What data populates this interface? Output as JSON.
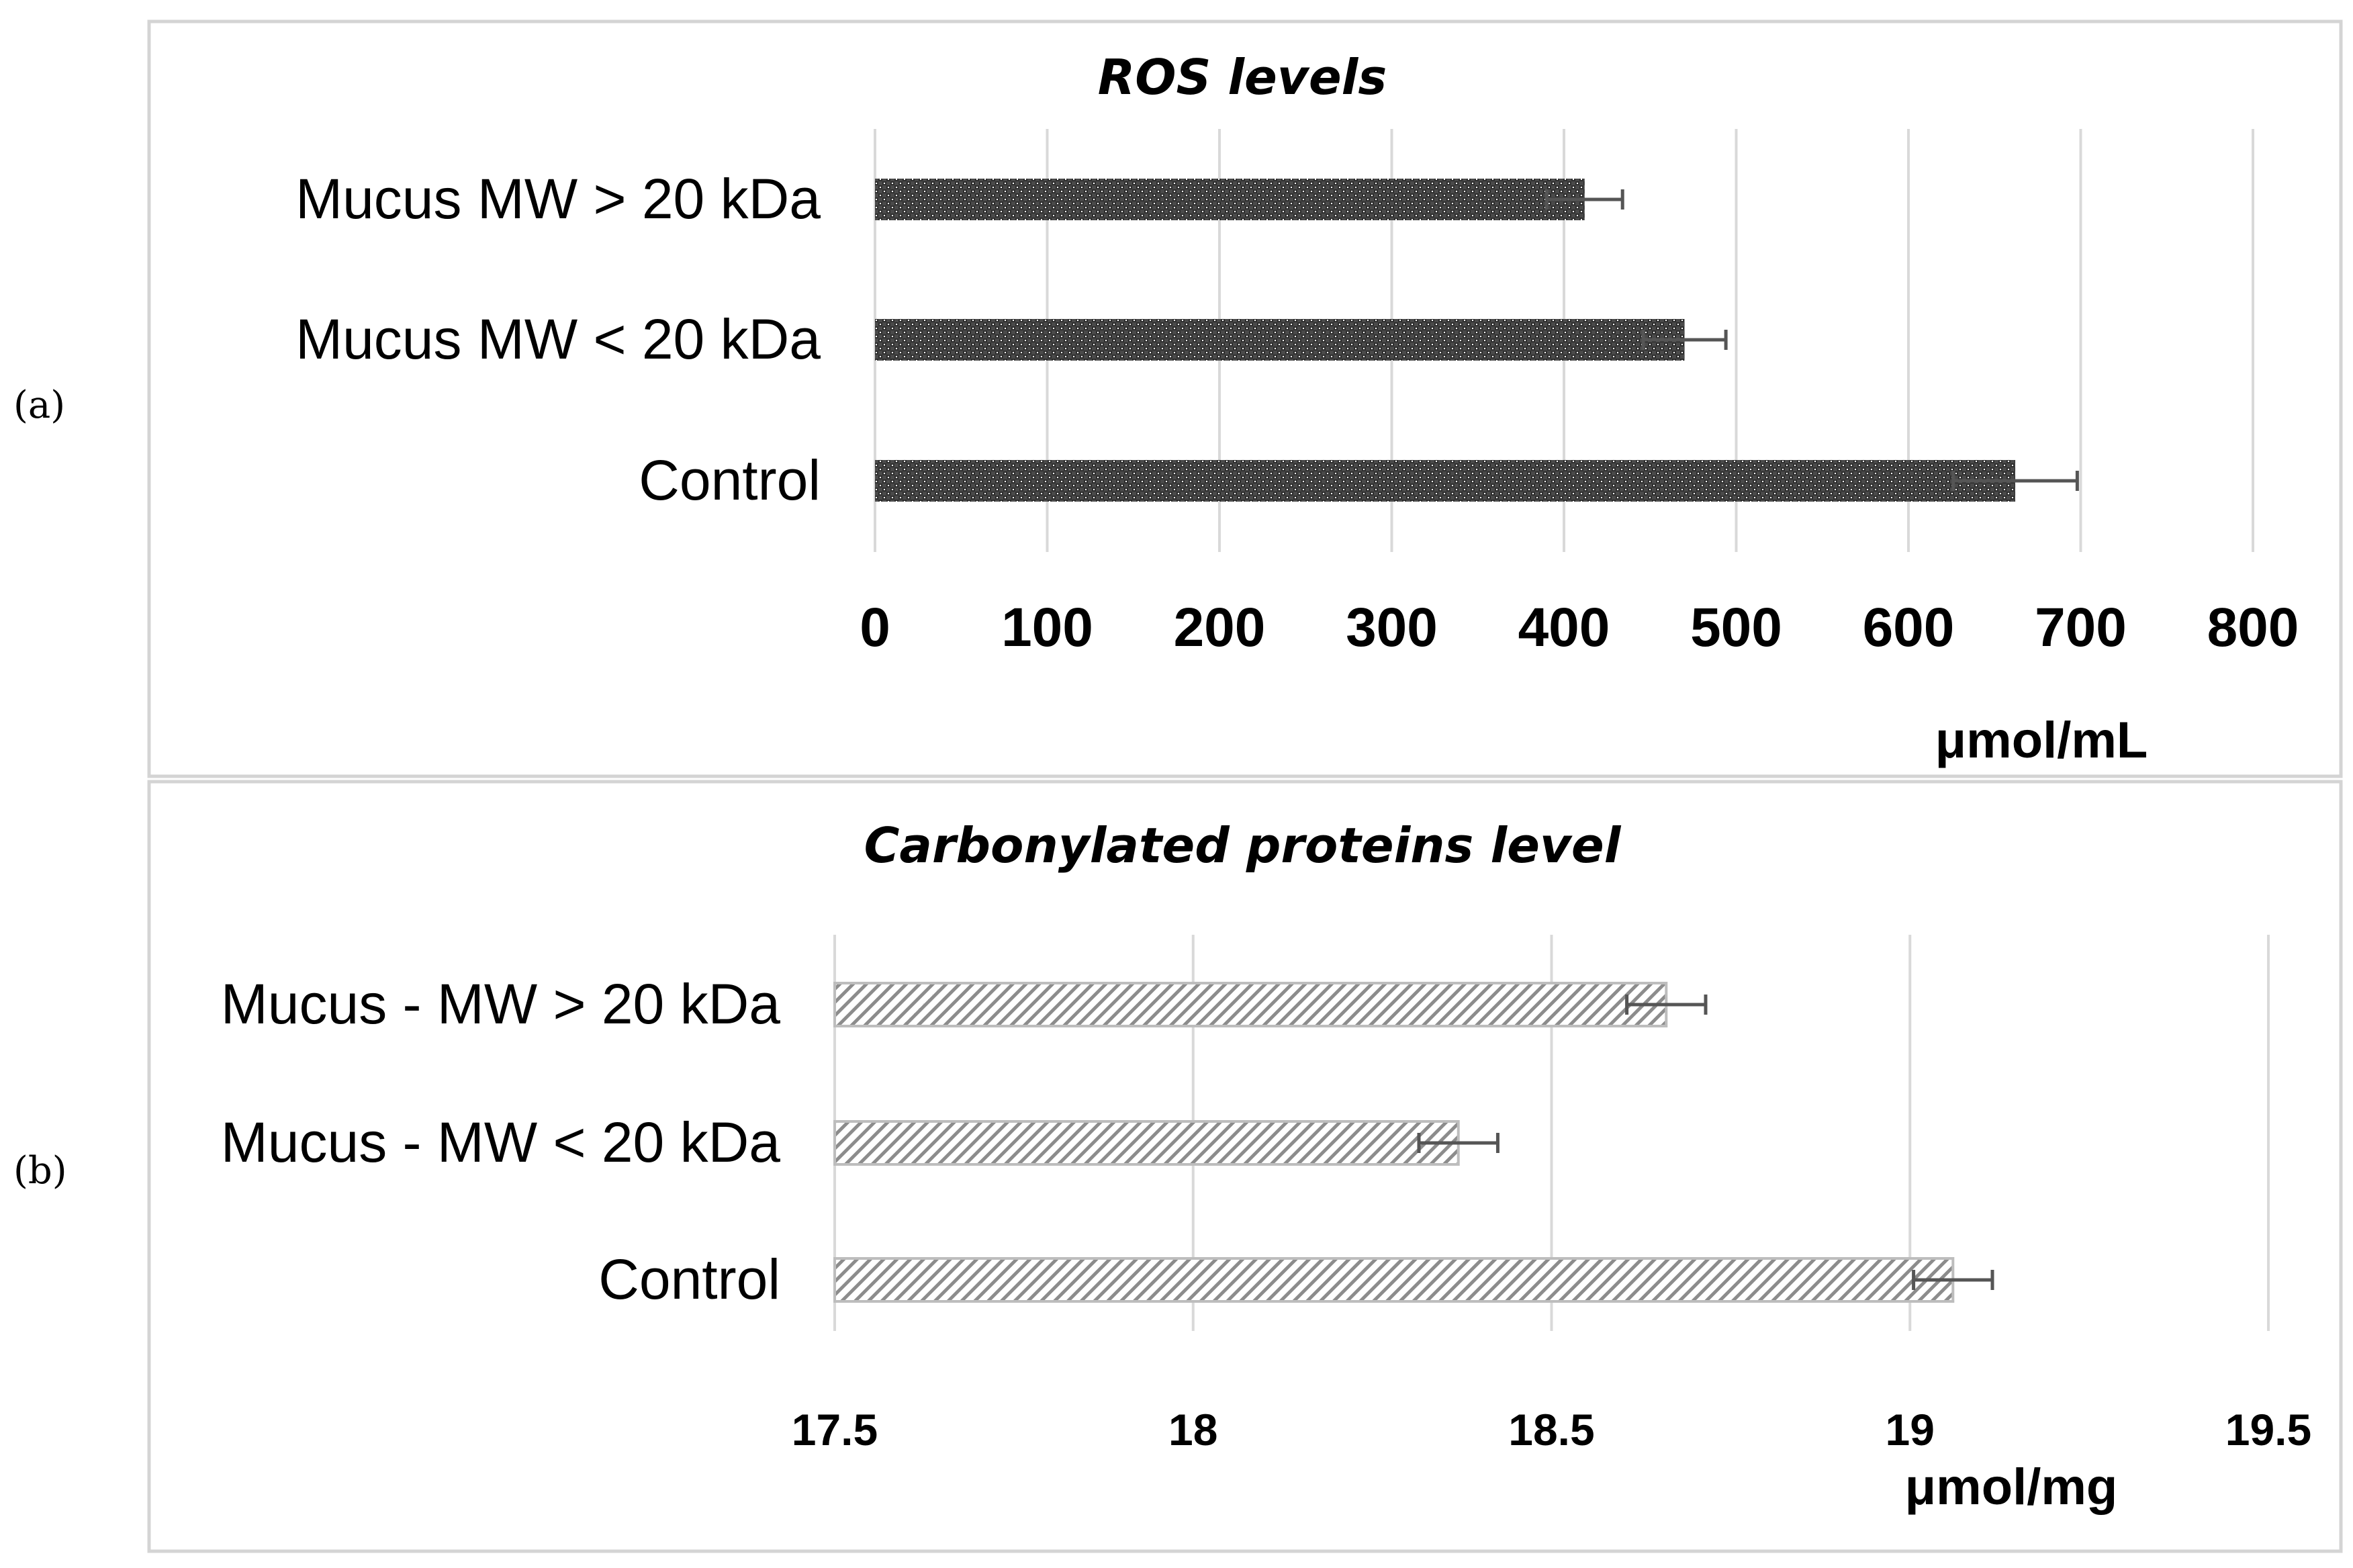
{
  "chart_data": [
    {
      "type": "bar",
      "orientation": "horizontal",
      "panel_label": "(a)",
      "title": "ROS levels",
      "xlabel": "μmol/mL",
      "ylabel": "",
      "categories": [
        "Mucus MW > 20 kDa",
        "Mucus MW < 20 kDa",
        "Control"
      ],
      "values": [
        412,
        470,
        662
      ],
      "errors": [
        22,
        24,
        36
      ],
      "xlim": [
        0,
        800
      ],
      "ticks": [
        "0",
        "100",
        "200",
        "300",
        "400",
        "500",
        "600",
        "700",
        "800"
      ],
      "tick_values": [
        0,
        100,
        200,
        300,
        400,
        500,
        600,
        700,
        800
      ],
      "grid": true,
      "bar_fill": "#3a3a3a",
      "bar_pattern": "dots"
    },
    {
      "type": "bar",
      "orientation": "horizontal",
      "panel_label": "(b)",
      "title": "Carbonylated proteins level",
      "xlabel": "μmol/mg",
      "ylabel": "",
      "categories": [
        "Mucus - MW > 20 kDa",
        "Mucus - MW < 20 kDa",
        "Control"
      ],
      "values": [
        18.66,
        18.37,
        19.06
      ],
      "errors": [
        0.055,
        0.055,
        0.055
      ],
      "xlim": [
        17.5,
        19.5
      ],
      "ticks": [
        "17.5",
        "18",
        "18.5",
        "19",
        "19.5"
      ],
      "tick_values": [
        17.5,
        18,
        18.5,
        19,
        19.5
      ],
      "grid": true,
      "bar_fill": "#9a9a9a",
      "bar_pattern": "diagonal-hatch"
    }
  ]
}
